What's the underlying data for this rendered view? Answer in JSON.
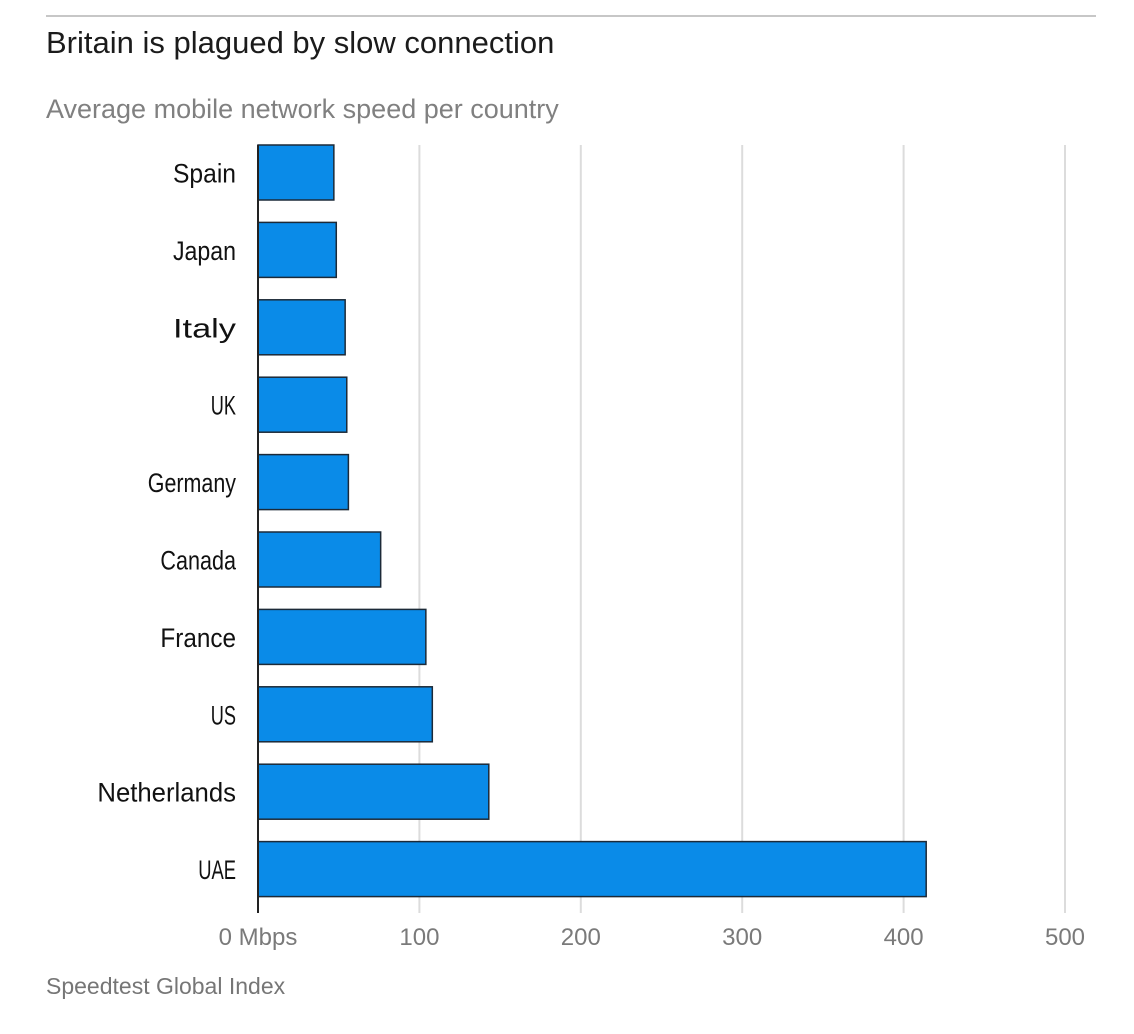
{
  "header": {
    "title": "Britain is plagued by slow connection",
    "subtitle": "Average mobile network speed per country"
  },
  "footer": {
    "source": "Speedtest Global Index"
  },
  "colors": {
    "bar_fill": "#0a8be8",
    "bar_stroke": "#1c2a38",
    "gridline": "#dcdcdc",
    "axis": "#222222",
    "tick_label": "#7a7a7a",
    "category_label": "#111111"
  },
  "chart_data": {
    "type": "bar",
    "orientation": "horizontal",
    "title": "Britain is plagued by slow connection",
    "subtitle": "Average mobile network speed per country",
    "categories": [
      "Spain",
      "Japan",
      "Italy",
      "UK",
      "Germany",
      "Canada",
      "France",
      "US",
      "Netherlands",
      "UAE"
    ],
    "values": [
      47,
      48.5,
      54,
      55,
      56,
      76,
      104,
      108,
      143,
      414
    ],
    "xlabel": "",
    "ylabel": "",
    "xlim": [
      0,
      500
    ],
    "x_ticks": [
      0,
      100,
      200,
      300,
      400,
      500
    ],
    "x_tick_labels": [
      "0 Mbps",
      "100",
      "200",
      "300",
      "400",
      "500"
    ],
    "grid": true,
    "source": "Speedtest Global Index"
  }
}
